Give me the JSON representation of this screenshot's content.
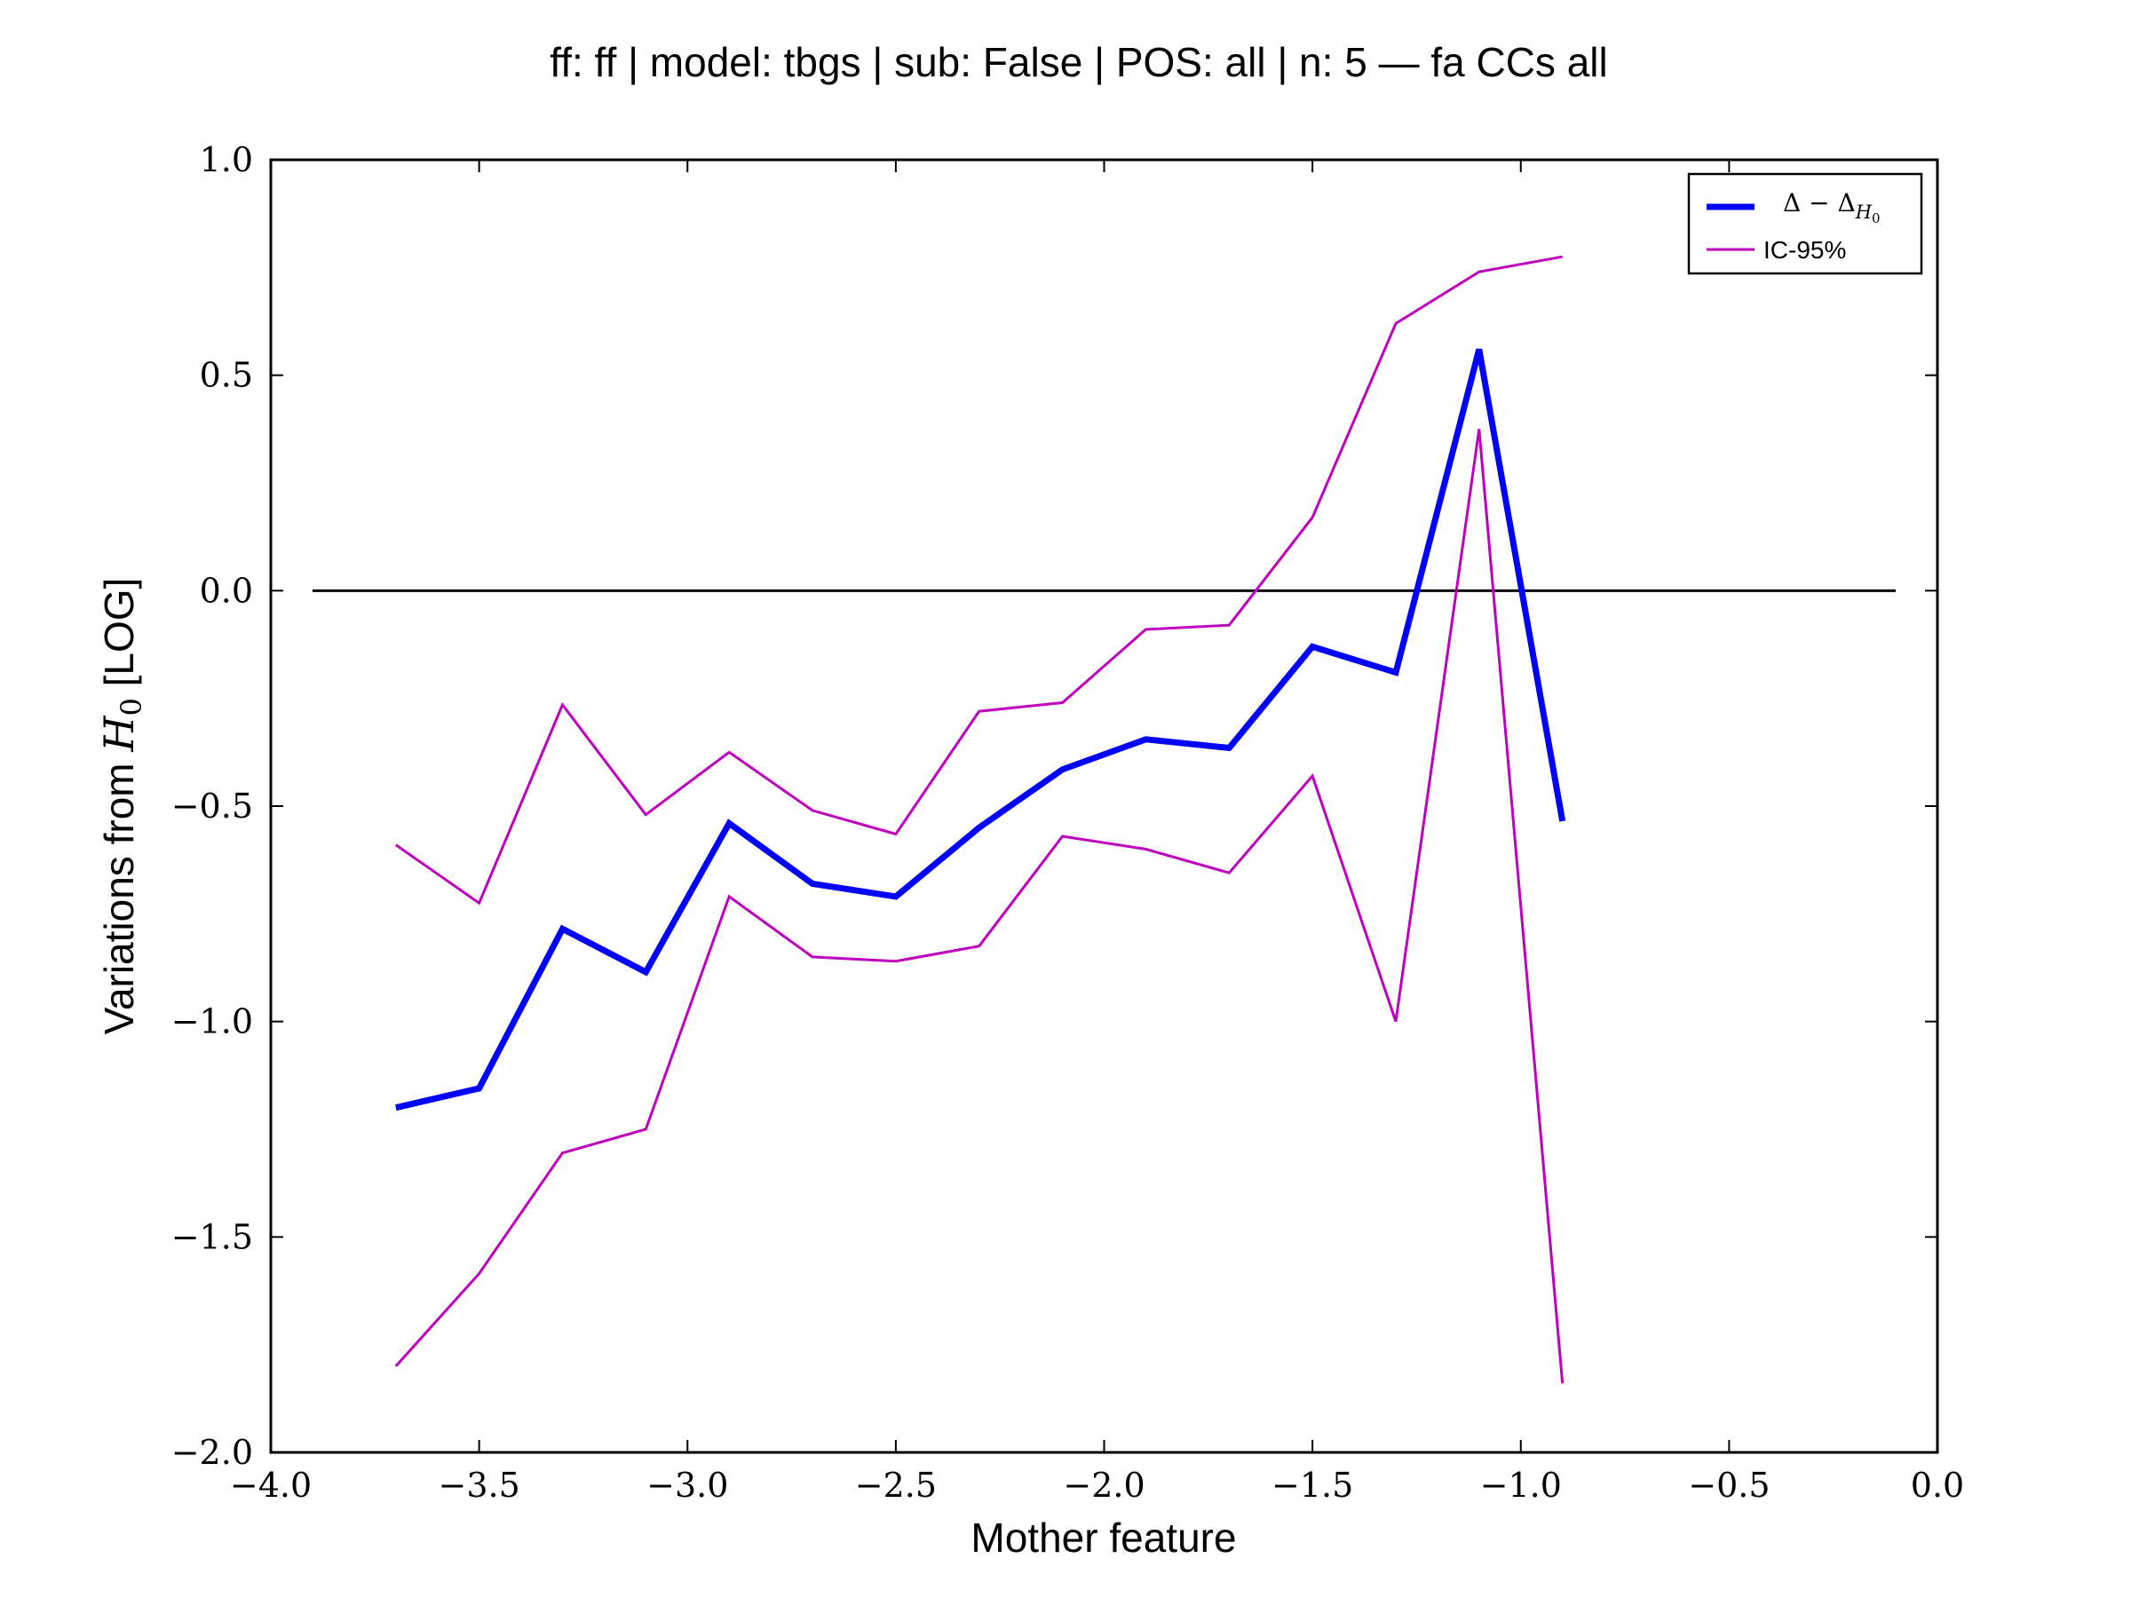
{
  "chart_data": {
    "type": "line",
    "title": "ff: ff | model: tbgs | sub: False | POS: all | n: 5 — fa CCs all",
    "xlabel": "Mother feature",
    "ylabel_prefix": "Variations from ",
    "ylabel_math_base": "H",
    "ylabel_math_sub": "0",
    "ylabel_suffix": " [LOG]",
    "xlim": [
      -4.0,
      0.0
    ],
    "ylim": [
      -2.0,
      1.0
    ],
    "xticks": [
      -4.0,
      -3.5,
      -3.0,
      -2.5,
      -2.0,
      -1.5,
      -1.0,
      -0.5,
      0.0
    ],
    "xtick_labels": [
      "−4.0",
      "−3.5",
      "−3.0",
      "−2.5",
      "−2.0",
      "−1.5",
      "−1.0",
      "−0.5",
      "0.0"
    ],
    "yticks": [
      -2.0,
      -1.5,
      -1.0,
      -0.5,
      0.0,
      0.5,
      1.0
    ],
    "ytick_labels": [
      "−2.0",
      "−1.5",
      "−1.0",
      "−0.5",
      "0.0",
      "0.5",
      "1.0"
    ],
    "grid": false,
    "legend_position": "top-right",
    "x": [
      -3.7,
      -3.5,
      -3.3,
      -3.1,
      -2.9,
      -2.7,
      -2.5,
      -2.3,
      -2.1,
      -1.9,
      -1.7,
      -1.5,
      -1.3,
      -1.1,
      -0.9
    ],
    "series": [
      {
        "key": "delta",
        "name_parts": [
          "Δ − Δ",
          "H",
          "0"
        ],
        "color": "#0000ff",
        "values": [
          -1.2,
          -1.155,
          -0.785,
          -0.885,
          -0.54,
          -0.68,
          -0.71,
          -0.55,
          -0.415,
          -0.345,
          -0.365,
          -0.13,
          -0.19,
          0.56,
          -0.535
        ]
      },
      {
        "key": "ic_upper",
        "name": "IC-95%",
        "color": "#bf00bf",
        "values": [
          -0.59,
          -0.725,
          -0.265,
          -0.52,
          -0.375,
          -0.51,
          -0.565,
          -0.28,
          -0.26,
          -0.09,
          -0.08,
          0.17,
          0.62,
          0.74,
          0.775
        ]
      },
      {
        "key": "ic_lower",
        "name": "",
        "color": "#bf00bf",
        "values": [
          -1.8,
          -1.585,
          -1.305,
          -1.25,
          -0.71,
          -0.85,
          -0.86,
          -0.825,
          -0.57,
          -0.6,
          -0.655,
          -0.43,
          -1.0,
          0.375,
          -1.84
        ]
      }
    ],
    "reference_line": {
      "y": 0.0,
      "x_range": [
        -3.9,
        -0.1
      ],
      "color": "#000000"
    }
  }
}
